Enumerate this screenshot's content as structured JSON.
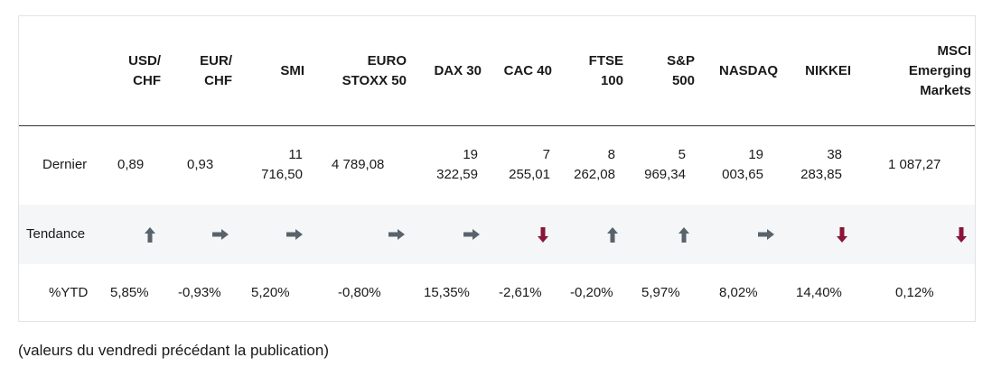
{
  "table": {
    "columns": [
      "USD/\nCHF",
      "EUR/\nCHF",
      "SMI",
      "EURO\nSTOXX 50",
      "DAX 30",
      "CAC 40",
      "FTSE\n100",
      "S&P\n500",
      "NASDAQ",
      "NIKKEI",
      "MSCI\nEmerging\nMarkets"
    ],
    "row_labels": {
      "last": "Dernier",
      "trend": "Tendance",
      "ytd": "%YTD"
    },
    "last": [
      "0,89",
      "0,93",
      "11\n716,50",
      "4 789,08",
      "19\n322,59",
      "7\n255,01",
      "8\n262,08",
      "5\n969,34",
      "19\n003,65",
      "38\n283,85",
      "1 087,27"
    ],
    "trend_icons": [
      "arrow-up-icon",
      "arrow-right-icon",
      "arrow-right-icon",
      "arrow-right-icon",
      "arrow-right-icon",
      "arrow-down-icon",
      "arrow-up-icon",
      "arrow-up-icon",
      "arrow-right-icon",
      "arrow-down-icon",
      "arrow-down-icon"
    ],
    "trend": [
      "up",
      "right",
      "right",
      "right",
      "right",
      "down",
      "up",
      "up",
      "right",
      "down",
      "down"
    ],
    "ytd": [
      "5,85%",
      "-0,93%",
      "5,20%",
      "-0,80%",
      "15,35%",
      "-2,61%",
      "-0,20%",
      "5,97%",
      "8,02%",
      "14,40%",
      "0,12%"
    ]
  },
  "colors": {
    "neutral_arrow": "#59636b",
    "down_arrow": "#8a1538",
    "header_rule": "#333333",
    "trend_band": "#f5f6f7"
  },
  "footnote": "(valeurs du vendredi précédant la publication)"
}
